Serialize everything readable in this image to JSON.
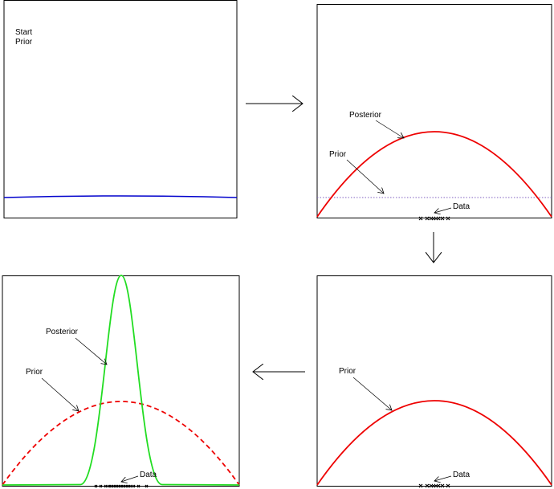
{
  "panels": [
    {
      "labels": [
        "Start",
        "Prior"
      ]
    },
    {
      "labels": [
        "Posterior",
        "Prior",
        "Data"
      ]
    },
    {
      "labels": [
        "Prior",
        "Data"
      ]
    },
    {
      "labels": [
        "Posterior",
        "Prior",
        "Data"
      ]
    }
  ]
}
